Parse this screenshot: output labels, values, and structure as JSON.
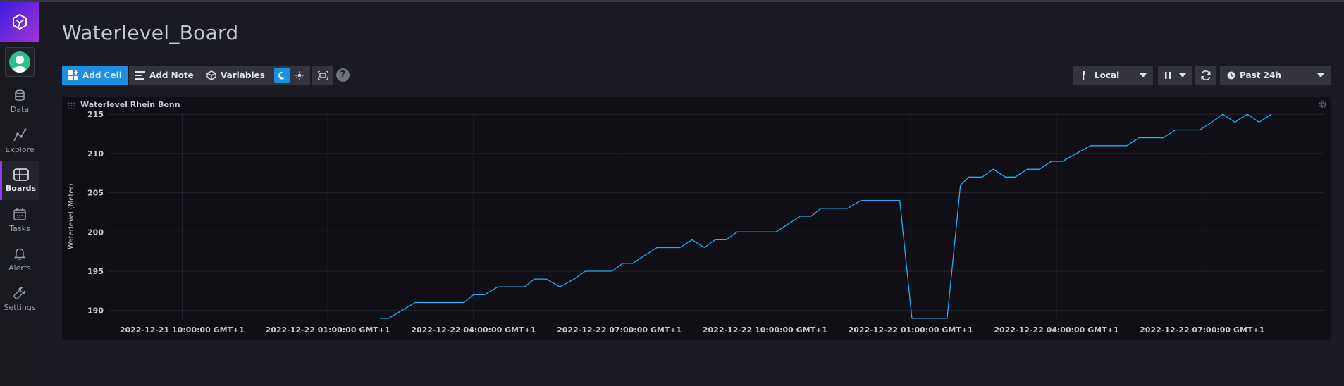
{
  "sidebar": {
    "items": [
      {
        "label": "Data",
        "icon": "database-icon"
      },
      {
        "label": "Explore",
        "icon": "graph-icon"
      },
      {
        "label": "Boards",
        "icon": "boards-icon"
      },
      {
        "label": "Tasks",
        "icon": "calendar-icon"
      },
      {
        "label": "Alerts",
        "icon": "bell-icon"
      },
      {
        "label": "Settings",
        "icon": "wrench-icon"
      }
    ],
    "active": "Boards",
    "accent": "#8a3cf0"
  },
  "header": {
    "title": "Waterlevel_Board"
  },
  "toolbar": {
    "add_cell": "Add Cell",
    "add_note": "Add Note",
    "variables": "Variables",
    "help": "?",
    "timezone": "Local",
    "time_range": "Past 24h"
  },
  "cell": {
    "title": "Waterlevel Rhein Bonn"
  },
  "chart_data": {
    "type": "line",
    "ylabel": "Waterlevel (Meter)",
    "ylim": [
      188.8,
      215.2
    ],
    "yticks": [
      190,
      195,
      200,
      205,
      210,
      215
    ],
    "xlim": [
      0,
      100
    ],
    "xticks": [
      {
        "x": 6,
        "label": "2022-12-21 10:00:00 GMT+1"
      },
      {
        "x": 18,
        "label": "2022-12-22 01:00:00 GMT+1"
      },
      {
        "x": 30,
        "label": "2022-12-22 04:00:00 GMT+1"
      },
      {
        "x": 42,
        "label": "2022-12-22 07:00:00 GMT+1"
      },
      {
        "x": 54,
        "label": "2022-12-22 10:00:00 GMT+1"
      },
      {
        "x": 66,
        "label": "2022-12-22 01:00:00 GMT+1"
      },
      {
        "x": 78,
        "label": "2022-12-22 04:00:00 GMT+1"
      },
      {
        "x": 90,
        "label": "2022-12-22 07:00:00 GMT+1"
      }
    ],
    "grid": true,
    "series": [
      {
        "color": "#22adf6",
        "points": [
          [
            22.3,
            189
          ],
          [
            23.0,
            189
          ],
          [
            25.2,
            191
          ],
          [
            29.2,
            191
          ],
          [
            30.0,
            192
          ],
          [
            30.9,
            192
          ],
          [
            32.0,
            193
          ],
          [
            34.2,
            193
          ],
          [
            35.0,
            194
          ],
          [
            36.0,
            194
          ],
          [
            37.1,
            193
          ],
          [
            38.3,
            194
          ],
          [
            39.2,
            195
          ],
          [
            41.4,
            195
          ],
          [
            42.3,
            196
          ],
          [
            43.1,
            196
          ],
          [
            45.1,
            198
          ],
          [
            47.0,
            198
          ],
          [
            48.0,
            199
          ],
          [
            49.0,
            198
          ],
          [
            49.9,
            199
          ],
          [
            50.8,
            199
          ],
          [
            51.7,
            200
          ],
          [
            54.9,
            200
          ],
          [
            56.9,
            202
          ],
          [
            57.8,
            202
          ],
          [
            58.6,
            203
          ],
          [
            60.8,
            203
          ],
          [
            61.9,
            204
          ],
          [
            65.1,
            204
          ],
          [
            66.1,
            189
          ],
          [
            69.0,
            189
          ],
          [
            70.1,
            206
          ],
          [
            70.8,
            207
          ],
          [
            71.9,
            207
          ],
          [
            72.8,
            208
          ],
          [
            73.8,
            207
          ],
          [
            74.6,
            207
          ],
          [
            75.6,
            208
          ],
          [
            76.6,
            208
          ],
          [
            77.6,
            209
          ],
          [
            78.5,
            209
          ],
          [
            80.8,
            211
          ],
          [
            83.8,
            211
          ],
          [
            84.8,
            212
          ],
          [
            86.8,
            212
          ],
          [
            87.8,
            213
          ],
          [
            89.8,
            213
          ],
          [
            90.8,
            214
          ],
          [
            91.7,
            215
          ],
          [
            92.7,
            214
          ],
          [
            93.7,
            215
          ],
          [
            94.7,
            214
          ],
          [
            95.7,
            215
          ]
        ]
      }
    ]
  }
}
